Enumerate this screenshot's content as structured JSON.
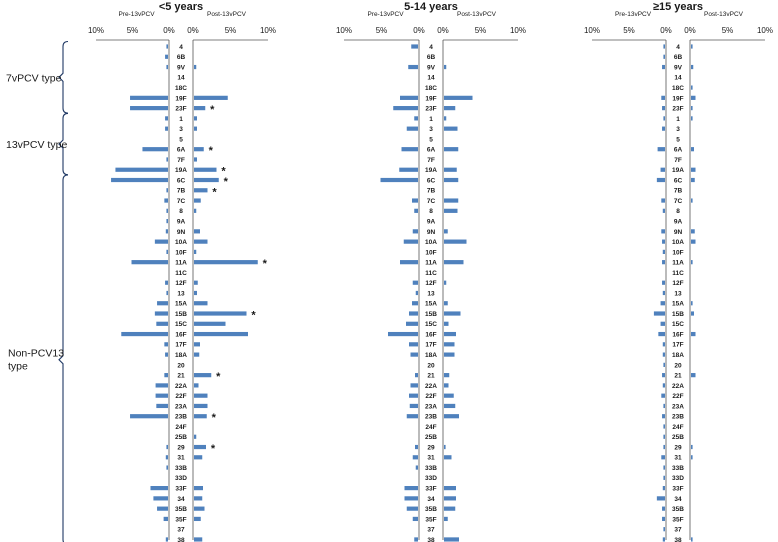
{
  "chart_data": {
    "type": "bar",
    "orientation": "horizontal-butterfly",
    "colors": {
      "bar": "#4f81bd",
      "text": "#1a1a1a",
      "brace": "#1f3864"
    },
    "left_header": "Pre-13vPCV",
    "right_header": "Post-13vPCV",
    "tick_labels_left": [
      "10%",
      "5%",
      "0%"
    ],
    "tick_labels_right": [
      "0%",
      "5%",
      "10%"
    ],
    "xlim_percent": [
      0,
      10
    ],
    "serotypes": [
      "4",
      "6B",
      "9V",
      "14",
      "18C",
      "19F",
      "23F",
      "1",
      "3",
      "5",
      "6A",
      "7F",
      "19A",
      "6C",
      "7B",
      "7C",
      "8",
      "9A",
      "9N",
      "10A",
      "10F",
      "11A",
      "11C",
      "12F",
      "13",
      "15A",
      "15B",
      "15C",
      "16F",
      "17F",
      "18A",
      "20",
      "21",
      "22A",
      "22F",
      "23A",
      "23B",
      "24F",
      "25B",
      "29",
      "31",
      "33B",
      "33D",
      "33F",
      "34",
      "35B",
      "35F",
      "37",
      "38"
    ],
    "groups": [
      {
        "label": "7vPCV type",
        "first_index": 0,
        "last_index": 6
      },
      {
        "label": "13vPCV type",
        "first_index": 7,
        "last_index": 12
      },
      {
        "label": "Non-PCV13 type",
        "first_index": 13,
        "last_index": 48
      }
    ],
    "panels": [
      {
        "title": "<5 years",
        "pre": [
          0.2,
          0.4,
          0.2,
          0,
          0,
          5.2,
          5.2,
          0.4,
          0.4,
          0,
          3.5,
          0.2,
          7.2,
          7.8,
          0.2,
          0.5,
          0.2,
          0.1,
          0.3,
          1.8,
          0.2,
          5.0,
          0,
          0.4,
          0.1,
          1.5,
          1.8,
          1.6,
          6.4,
          0.5,
          0.4,
          0,
          0.5,
          1.7,
          1.7,
          1.6,
          5.2,
          0,
          0,
          0.2,
          0.3,
          0.2,
          0,
          2.4,
          2.0,
          1.5,
          0.6,
          0,
          0.3
        ],
        "post": [
          0,
          0,
          0.3,
          0,
          0,
          4.5,
          1.5,
          0.4,
          0.4,
          0,
          1.3,
          0.4,
          3.0,
          3.3,
          1.8,
          0.9,
          0.3,
          0,
          0.8,
          1.8,
          0.3,
          8.5,
          0,
          0.5,
          0.4,
          1.8,
          7.0,
          4.2,
          7.2,
          0.8,
          0.7,
          0,
          2.3,
          0.6,
          1.8,
          1.8,
          1.7,
          0,
          0.3,
          1.6,
          1.1,
          0,
          0,
          1.2,
          1.1,
          1.4,
          0.9,
          0,
          1.1
        ],
        "significant": [
          "23F",
          "6A",
          "19A",
          "6C",
          "7B",
          "11A",
          "15B",
          "21",
          "23B",
          "29"
        ]
      },
      {
        "title": "5-14 years",
        "pre": [
          0.9,
          0,
          1.3,
          0,
          0,
          2.4,
          3.3,
          0.5,
          1.5,
          0,
          2.2,
          0,
          2.5,
          5.0,
          0,
          0.8,
          0.5,
          0,
          0.7,
          1.9,
          0,
          2.4,
          0,
          0.7,
          0.3,
          0.8,
          1.2,
          1.6,
          4.0,
          1.2,
          1.0,
          0,
          0.4,
          1.0,
          1.2,
          1.1,
          1.5,
          0,
          0,
          0.4,
          0.7,
          0.3,
          0,
          1.8,
          1.8,
          1.5,
          0.7,
          0,
          0.5
        ],
        "post": [
          0,
          0,
          0.3,
          0,
          0,
          3.8,
          1.5,
          0.3,
          1.8,
          0,
          1.9,
          0,
          1.7,
          1.9,
          0,
          1.9,
          1.8,
          0,
          0.5,
          3.0,
          0,
          2.6,
          0,
          0.3,
          0,
          0.5,
          2.2,
          0.6,
          1.6,
          1.4,
          1.4,
          0,
          0.7,
          0.6,
          1.3,
          1.5,
          2.0,
          0,
          0,
          0.2,
          1.0,
          0,
          0,
          1.6,
          1.6,
          1.5,
          0.5,
          0,
          2.0
        ],
        "significant": []
      },
      {
        "title": "≥15 years",
        "pre": [
          0.2,
          0.2,
          0.4,
          0,
          0,
          0.5,
          0.4,
          0.1,
          0.4,
          0,
          1.0,
          0,
          0.6,
          1.1,
          0,
          0.5,
          0.3,
          0,
          0.5,
          0.4,
          0.3,
          0.4,
          0,
          0.4,
          0.3,
          0.6,
          1.5,
          0.6,
          0.9,
          0.3,
          0.3,
          0.2,
          0.4,
          0.3,
          0.5,
          0.2,
          0.4,
          0.2,
          0.2,
          0.1,
          0.5,
          0.1,
          0.2,
          0.3,
          1.1,
          0.4,
          0.4,
          0.2,
          0.3
        ],
        "post": [
          0.1,
          0,
          0.3,
          0,
          0.1,
          0.6,
          0.2,
          0.1,
          0,
          0,
          0.4,
          0,
          0.6,
          0.5,
          0,
          0.2,
          0,
          0,
          0.5,
          0.6,
          0,
          0.1,
          0,
          0,
          0,
          0.2,
          0.4,
          0,
          0.6,
          0,
          0,
          0,
          0.6,
          0,
          0,
          0,
          0,
          0,
          0,
          0.1,
          0.1,
          0,
          0,
          0,
          0,
          0,
          0,
          0,
          0.1
        ],
        "significant": []
      }
    ]
  }
}
